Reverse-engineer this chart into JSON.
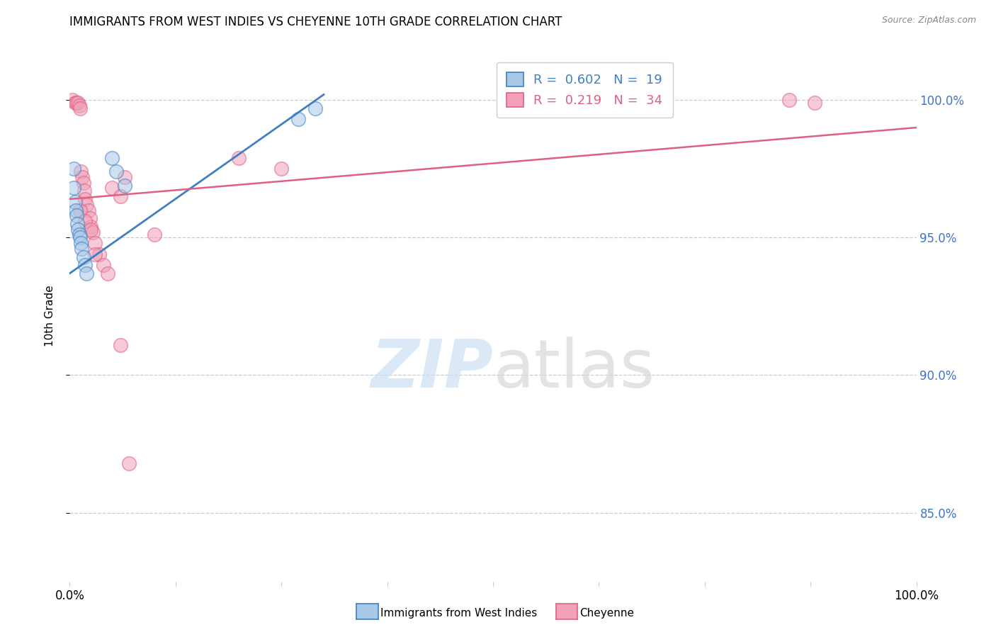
{
  "title": "IMMIGRANTS FROM WEST INDIES VS CHEYENNE 10TH GRADE CORRELATION CHART",
  "source": "Source: ZipAtlas.com",
  "ylabel": "10th Grade",
  "ytick_labels": [
    "85.0%",
    "90.0%",
    "95.0%",
    "100.0%"
  ],
  "ytick_values": [
    0.85,
    0.9,
    0.95,
    1.0
  ],
  "xmin": 0.0,
  "xmax": 1.0,
  "ymin": 0.825,
  "ymax": 1.018,
  "legend_blue_r": "0.602",
  "legend_blue_n": "19",
  "legend_pink_r": "0.219",
  "legend_pink_n": "34",
  "blue_color": "#a8c8e8",
  "pink_color": "#f0a0b8",
  "blue_line_color": "#4080c0",
  "pink_line_color": "#e06080",
  "blue_scatter_x": [
    0.005,
    0.006,
    0.007,
    0.008,
    0.009,
    0.01,
    0.011,
    0.012,
    0.013,
    0.014,
    0.016,
    0.018,
    0.02,
    0.05,
    0.055,
    0.065,
    0.27,
    0.29,
    0.005
  ],
  "blue_scatter_y": [
    0.968,
    0.963,
    0.96,
    0.958,
    0.955,
    0.953,
    0.951,
    0.95,
    0.948,
    0.946,
    0.943,
    0.94,
    0.937,
    0.979,
    0.974,
    0.969,
    0.993,
    0.997,
    0.975
  ],
  "pink_scatter_x": [
    0.003,
    0.006,
    0.008,
    0.01,
    0.011,
    0.012,
    0.013,
    0.015,
    0.016,
    0.017,
    0.018,
    0.02,
    0.022,
    0.024,
    0.025,
    0.027,
    0.03,
    0.035,
    0.04,
    0.045,
    0.05,
    0.06,
    0.065,
    0.1,
    0.2,
    0.25,
    0.85,
    0.88,
    0.012,
    0.018,
    0.025,
    0.03,
    0.06,
    0.07
  ],
  "pink_scatter_y": [
    1.0,
    0.999,
    0.999,
    0.999,
    0.998,
    0.997,
    0.974,
    0.972,
    0.97,
    0.967,
    0.964,
    0.962,
    0.96,
    0.957,
    0.954,
    0.952,
    0.948,
    0.944,
    0.94,
    0.937,
    0.968,
    0.965,
    0.972,
    0.951,
    0.979,
    0.975,
    1.0,
    0.999,
    0.96,
    0.956,
    0.953,
    0.944,
    0.911,
    0.868
  ],
  "blue_line_x": [
    0.0,
    0.3
  ],
  "blue_line_y": [
    0.937,
    1.002
  ],
  "pink_line_x": [
    0.0,
    1.0
  ],
  "pink_line_y": [
    0.964,
    0.99
  ]
}
